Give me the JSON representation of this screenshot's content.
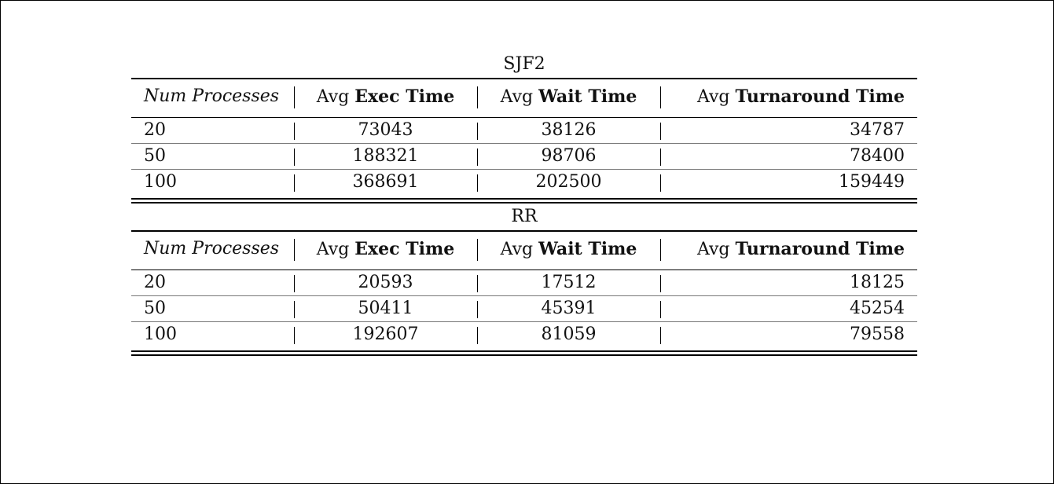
{
  "tables": [
    {
      "caption": "SJF2",
      "headers": {
        "num": "Num Processes",
        "exec_prefix": "Avg",
        "exec_bold": "Exec Time",
        "wait_prefix": "Avg",
        "wait_bold": "Wait Time",
        "turn_prefix": "Avg",
        "turn_bold": "Turnaround Time"
      },
      "rows": [
        [
          "20",
          "73043",
          "38126",
          "34787"
        ],
        [
          "50",
          "188321",
          "98706",
          "78400"
        ],
        [
          "100",
          "368691",
          "202500",
          "159449"
        ]
      ]
    },
    {
      "caption": "RR",
      "headers": {
        "num": "Num Processes",
        "exec_prefix": "Avg",
        "exec_bold": "Exec Time",
        "wait_prefix": "Avg",
        "wait_bold": "Wait Time",
        "turn_prefix": "Avg",
        "turn_bold": "Turnaround Time"
      },
      "rows": [
        [
          "20",
          "20593",
          "17512",
          "18125"
        ],
        [
          "50",
          "50411",
          "45391",
          "45254"
        ],
        [
          "100",
          "192607",
          "81059",
          "79558"
        ]
      ]
    }
  ]
}
